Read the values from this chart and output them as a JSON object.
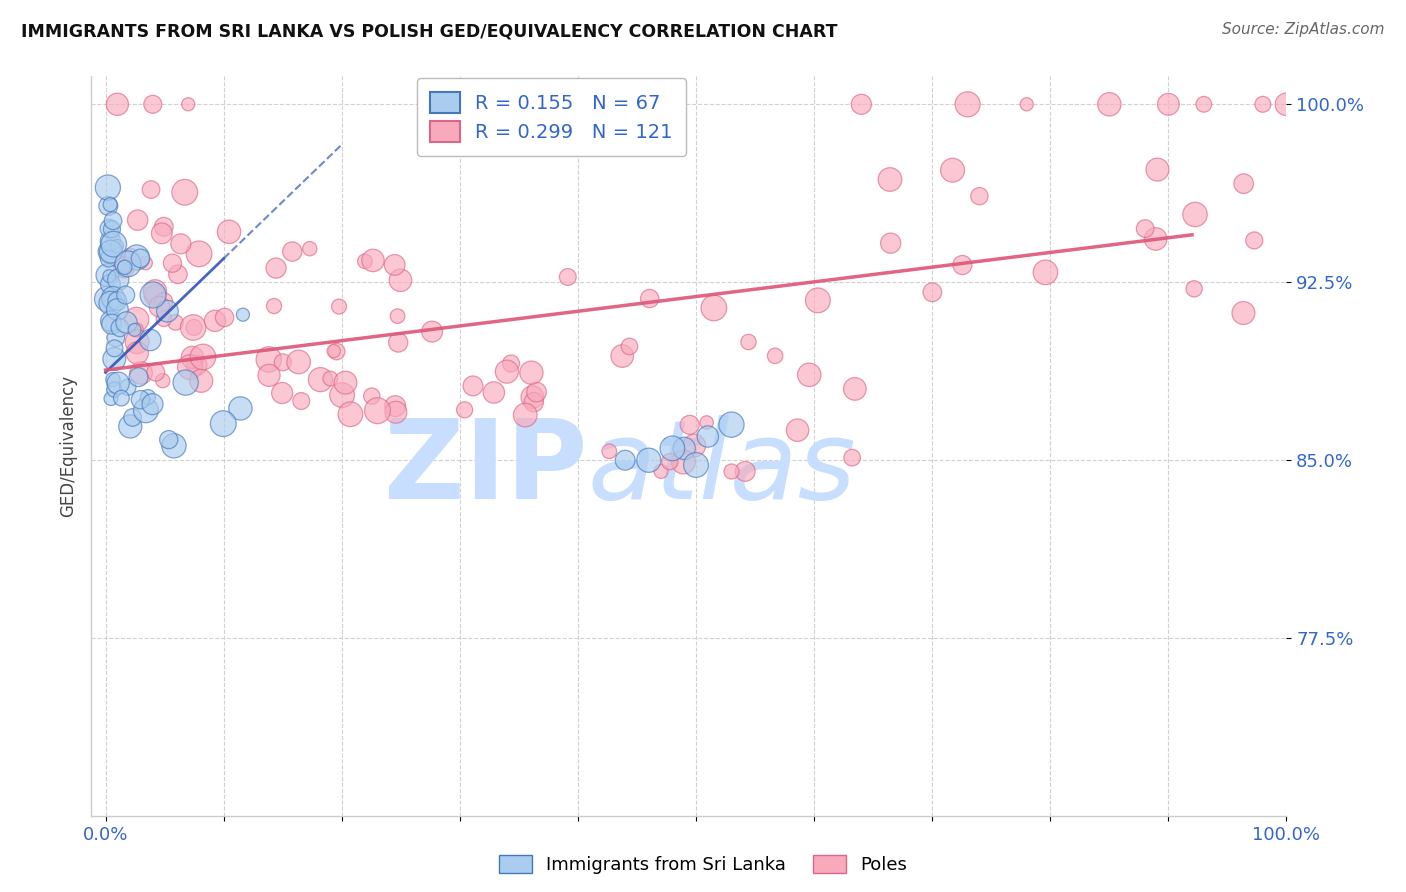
{
  "title": "IMMIGRANTS FROM SRI LANKA VS POLISH GED/EQUIVALENCY CORRELATION CHART",
  "source": "Source: ZipAtlas.com",
  "ylabel": "GED/Equivalency",
  "xlim": [
    -0.012,
    1.0
  ],
  "ylim": [
    0.7,
    1.012
  ],
  "ytick_vals": [
    0.775,
    0.85,
    0.925,
    1.0
  ],
  "ytick_labels": [
    "77.5%",
    "85.0%",
    "92.5%",
    "100.0%"
  ],
  "xtick_vals": [
    0.0,
    0.1,
    0.2,
    0.3,
    0.4,
    0.5,
    0.6,
    0.7,
    0.8,
    0.9,
    1.0
  ],
  "xtick_labels": [
    "0.0%",
    "",
    "",
    "",
    "",
    "",
    "",
    "",
    "",
    "",
    "100.0%"
  ],
  "blue_face": "#AACCEE",
  "blue_edge": "#4477BB",
  "pink_face": "#F8AABC",
  "pink_edge": "#DD6688",
  "blue_line_color": "#3355BB",
  "pink_line_color": "#DD5577",
  "grid_color": "#CCCCCC",
  "text_color": "#3366CC",
  "title_color": "#111111",
  "source_color": "#666666",
  "watermark_zip_color": "#C8DEFF",
  "watermark_atlas_color": "#C8DEFF"
}
